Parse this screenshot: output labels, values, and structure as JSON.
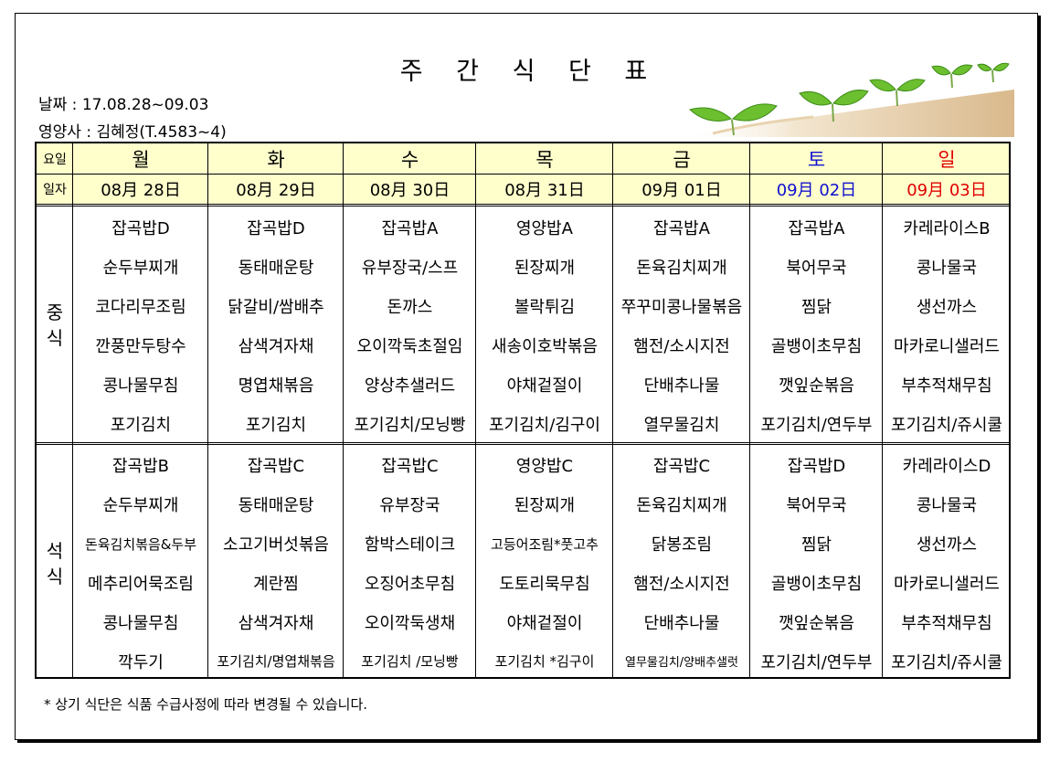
{
  "title": "주 간 식 단 표",
  "date_line": "날짜 : 17.08.28~09.03",
  "nutritionist_line": "영양사 : 김혜정(T.4583~4)",
  "header": {
    "row1_label": "요일",
    "row2_label": "일자",
    "days": [
      "월",
      "화",
      "수",
      "목",
      "금",
      "토",
      "일"
    ],
    "dates": [
      "08月 28日",
      "08月 29日",
      "08月 30日",
      "08月 31日",
      "09月 01日",
      "09月 02日",
      "09月 03日"
    ]
  },
  "colors": {
    "saturday": "#1010d0",
    "sunday": "#e00000",
    "header_bg": "#ffffcc"
  },
  "lunch": {
    "label": "중\n식",
    "days": [
      [
        "잡곡밥D",
        "순두부찌개",
        "코다리무조림",
        "깐풍만두탕수",
        "콩나물무침",
        "포기김치"
      ],
      [
        "잡곡밥D",
        "동태매운탕",
        "닭갈비/쌈배추",
        "삼색겨자채",
        "명엽채볶음",
        "포기김치"
      ],
      [
        "잡곡밥A",
        "유부장국/스프",
        "돈까스",
        "오이깍둑초절임",
        "양상추샐러드",
        "포기김치/모닝빵"
      ],
      [
        "영양밥A",
        "된장찌개",
        "볼락튀김",
        "새송이호박볶음",
        "야채겉절이",
        "포기김치/김구이"
      ],
      [
        "잡곡밥A",
        "돈육김치찌개",
        "쭈꾸미콩나물볶음",
        "햄전/소시지전",
        "단배추나물",
        "열무물김치"
      ],
      [
        "잡곡밥A",
        "북어무국",
        "찜닭",
        "골뱅이초무침",
        "깻잎순볶음",
        "포기김치/연두부"
      ],
      [
        "카레라이스B",
        "콩나물국",
        "생선까스",
        "마카로니샐러드",
        "부추적채무침",
        "포기김치/쥬시쿨"
      ]
    ]
  },
  "dinner": {
    "label": "석\n식",
    "days": [
      [
        "잡곡밥B",
        "순두부찌개",
        "돈육김치볶음&두부",
        "메추리어묵조림",
        "콩나물무침",
        "깍두기"
      ],
      [
        "잡곡밥C",
        "동태매운탕",
        "소고기버섯볶음",
        "계란찜",
        "삼색겨자채",
        "포기김치/명엽채볶음"
      ],
      [
        "잡곡밥C",
        "유부장국",
        "함박스테이크",
        "오징어초무침",
        "오이깍둑생채",
        "포기김치 /모닝빵"
      ],
      [
        "영양밥C",
        "된장찌개",
        "고등어조림*풋고추",
        "도토리묵무침",
        "야채겉절이",
        "포기김치 *김구이"
      ],
      [
        "잡곡밥C",
        "돈육김치찌개",
        "닭봉조림",
        "햄전/소시지전",
        "단배추나물",
        "열무물김치/양배추샐럿"
      ],
      [
        "잡곡밥D",
        "북어무국",
        "찜닭",
        "골뱅이초무침",
        "깻잎순볶음",
        "포기김치/연두부"
      ],
      [
        "카레라이스D",
        "콩나물국",
        "생선까스",
        "마카로니샐러드",
        "부추적채무침",
        "포기김치/쥬시쿨"
      ]
    ]
  },
  "footer_note": "* 상기 식단은 식품 수급사정에 따라 변경될 수 있습니다."
}
